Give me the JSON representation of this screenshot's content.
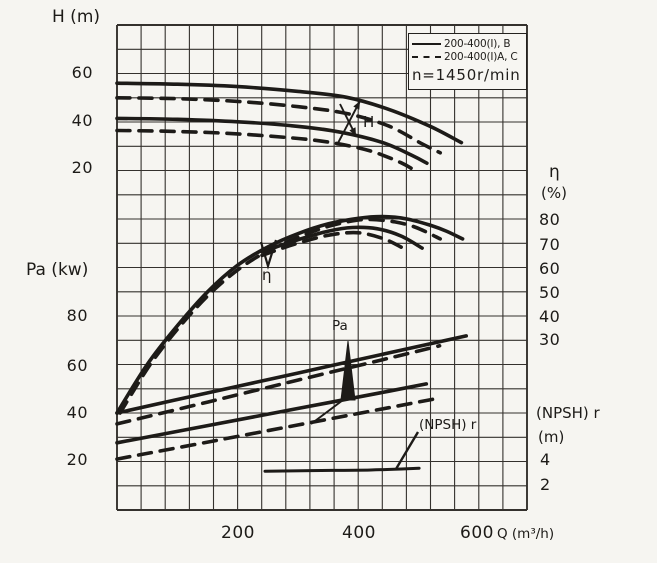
{
  "page": {
    "ink": "#1d1b18",
    "paper": "#f6f5f1"
  },
  "legend": {
    "entry_solid": "200-400(I), B",
    "entry_dashed": "200-400(I)A, C",
    "speed": "n=1450r/min"
  },
  "axis_labels": {
    "h_title": "H (m)",
    "pa_title": "Pa (kw)",
    "eta_title": "η",
    "eta_unit": "(%)",
    "npsh_title": "(NPSH) r",
    "npsh_unit": "(m)",
    "q_unit": "Q (m³/h)"
  },
  "annotations": {
    "h_curve": "H",
    "eta_curve": "η",
    "pa_curve": "Pa",
    "npsh_curve": "(NPSH) r"
  },
  "chart_data": {
    "type": "line",
    "speed_note": "n=1450r/min",
    "x_axis": {
      "label": "Q (m³/h)",
      "ticks": [
        200,
        400,
        600
      ],
      "range": [
        0,
        680
      ],
      "grid_step": 40
    },
    "y_axes": {
      "h": {
        "label": "H (m)",
        "ticks": [
          60,
          40,
          20
        ],
        "grid_step": 10
      },
      "pa": {
        "label": "Pa (kw)",
        "ticks": [
          80,
          60,
          40,
          20
        ],
        "grid_step": 10
      },
      "eta": {
        "label": "η",
        "unit": "(%)",
        "ticks": [
          80,
          70,
          60,
          50,
          40,
          30
        ],
        "grid_step": 10
      },
      "npsh": {
        "label": "(NPSH) r",
        "unit": "(m)",
        "ticks": [
          4,
          2
        ],
        "grid_step": 2
      }
    },
    "legend": {
      "solid": "200-400(I), B",
      "dashed": "200-400(I)A, C"
    },
    "series": [
      {
        "id": "h-b-1",
        "quantity": "H",
        "variant": "B",
        "style": "solid",
        "axis": "H",
        "points": [
          [
            0,
            56
          ],
          [
            100,
            55.6
          ],
          [
            200,
            54.6
          ],
          [
            300,
            52.6
          ],
          [
            380,
            50.2
          ],
          [
            450,
            45.2
          ],
          [
            520,
            38
          ],
          [
            570,
            31.5
          ]
        ]
      },
      {
        "id": "h-ac-1",
        "quantity": "H",
        "variant": "A,C",
        "style": "dashed",
        "axis": "H",
        "points": [
          [
            0,
            50
          ],
          [
            100,
            49.6
          ],
          [
            200,
            48.5
          ],
          [
            300,
            46.3
          ],
          [
            380,
            43.5
          ],
          [
            450,
            38.3
          ],
          [
            505,
            31
          ],
          [
            535,
            27.3
          ]
        ]
      },
      {
        "id": "h-b-2",
        "quantity": "H",
        "variant": "B",
        "style": "solid",
        "axis": "H",
        "points": [
          [
            0,
            41.5
          ],
          [
            100,
            41.1
          ],
          [
            200,
            40.1
          ],
          [
            300,
            38.2
          ],
          [
            370,
            35.8
          ],
          [
            440,
            31.5
          ],
          [
            490,
            26
          ],
          [
            513,
            23
          ]
        ]
      },
      {
        "id": "h-ac-2",
        "quantity": "H",
        "variant": "A,C",
        "style": "dashed",
        "axis": "H",
        "points": [
          [
            0,
            36.5
          ],
          [
            100,
            36.1
          ],
          [
            200,
            35.1
          ],
          [
            300,
            33.2
          ],
          [
            360,
            31.3
          ],
          [
            420,
            28
          ],
          [
            470,
            23.2
          ],
          [
            496,
            19.5
          ]
        ]
      },
      {
        "id": "eta-b-1",
        "quantity": "η",
        "variant": "B",
        "style": "solid",
        "axis": "eta",
        "points": [
          [
            0,
            0
          ],
          [
            50,
            20
          ],
          [
            100,
            36
          ],
          [
            150,
            50
          ],
          [
            200,
            61
          ],
          [
            250,
            68.5
          ],
          [
            300,
            74
          ],
          [
            350,
            78
          ],
          [
            400,
            80.3
          ],
          [
            440,
            81
          ],
          [
            480,
            80
          ],
          [
            520,
            77.3
          ],
          [
            545,
            75
          ],
          [
            572,
            71.8
          ]
        ]
      },
      {
        "id": "eta-ac-1",
        "quantity": "η",
        "variant": "A,C",
        "style": "dashed",
        "axis": "eta",
        "points": [
          [
            5,
            0
          ],
          [
            55,
            20
          ],
          [
            105,
            36
          ],
          [
            155,
            49.5
          ],
          [
            205,
            60
          ],
          [
            255,
            67.5
          ],
          [
            305,
            73
          ],
          [
            350,
            77
          ],
          [
            390,
            79.2
          ],
          [
            420,
            79.8
          ],
          [
            460,
            78.8
          ],
          [
            495,
            76.5
          ],
          [
            535,
            71.8
          ]
        ]
      },
      {
        "id": "eta-b-2",
        "quantity": "η",
        "variant": "B",
        "style": "solid",
        "axis": "eta",
        "points": [
          [
            240,
            66.5
          ],
          [
            300,
            71.5
          ],
          [
            350,
            75
          ],
          [
            390,
            76.5
          ],
          [
            430,
            76
          ],
          [
            470,
            73
          ],
          [
            505,
            68
          ]
        ]
      },
      {
        "id": "eta-ac-2",
        "quantity": "η",
        "variant": "A,C",
        "style": "dashed",
        "axis": "eta",
        "points": [
          [
            240,
            65
          ],
          [
            290,
            69.3
          ],
          [
            340,
            72.8
          ],
          [
            380,
            74.3
          ],
          [
            410,
            74
          ],
          [
            445,
            71.5
          ],
          [
            477,
            67.5
          ]
        ]
      },
      {
        "id": "pa-b-1",
        "quantity": "Pa",
        "variant": "B",
        "style": "solid",
        "axis": "Pa",
        "points": [
          [
            0,
            40
          ],
          [
            150,
            48.3
          ],
          [
            300,
            56.5
          ],
          [
            450,
            64.8
          ],
          [
            578,
            71.8
          ]
        ]
      },
      {
        "id": "pa-ac-1",
        "quantity": "Pa",
        "variant": "A,C",
        "style": "dashed",
        "axis": "Pa",
        "points": [
          [
            0,
            35.5
          ],
          [
            150,
            44.5
          ],
          [
            300,
            53.6
          ],
          [
            450,
            62.6
          ],
          [
            534,
            67.7
          ]
        ]
      },
      {
        "id": "pa-b-2",
        "quantity": "Pa",
        "variant": "B",
        "style": "solid",
        "axis": "Pa",
        "points": [
          [
            0,
            27.7
          ],
          [
            150,
            34.8
          ],
          [
            300,
            41.9
          ],
          [
            450,
            49
          ],
          [
            512,
            52
          ]
        ]
      },
      {
        "id": "pa-ac-2",
        "quantity": "Pa",
        "variant": "A,C",
        "style": "dashed",
        "axis": "Pa",
        "points": [
          [
            0,
            21
          ],
          [
            150,
            28
          ],
          [
            300,
            35.1
          ],
          [
            450,
            42.2
          ],
          [
            526,
            45.8
          ]
        ]
      },
      {
        "id": "npsh-1",
        "quantity": "(NPSH)r",
        "variant": "B",
        "style": "solid",
        "axis": "npsh",
        "points": [
          [
            245,
            3.2
          ],
          [
            320,
            3.25
          ],
          [
            420,
            3.3
          ],
          [
            500,
            3.45
          ]
        ]
      }
    ],
    "annotations": [
      {
        "text": "H",
        "target": "head-curves"
      },
      {
        "text": "η",
        "target": "efficiency-curves"
      },
      {
        "text": "Pa",
        "target": "power-curves"
      },
      {
        "text": "(NPSH) r",
        "target": "npsh-curve"
      }
    ]
  }
}
